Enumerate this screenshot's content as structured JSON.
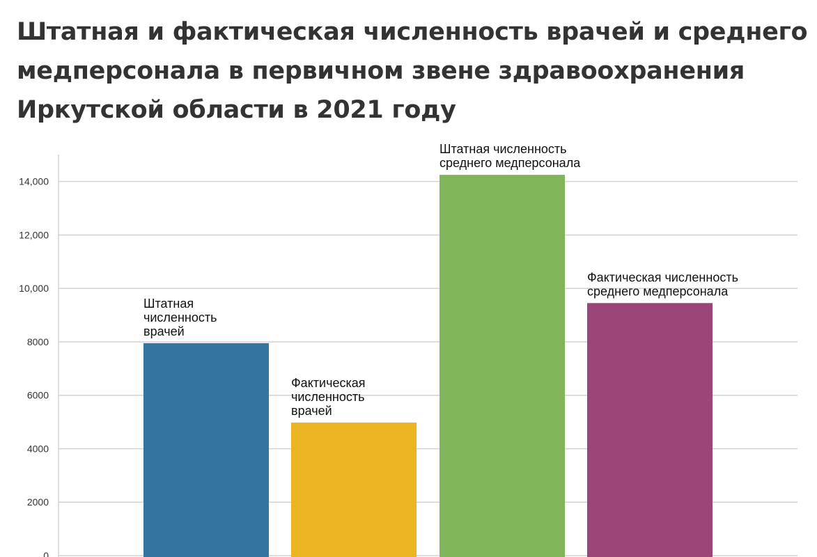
{
  "chart_data": {
    "type": "bar",
    "title_lines": [
      "Штатная и фактическая численность врачей и среднего",
      "медперсонала в первичном звене здравоохранения",
      "Иркутской области в 2021 году"
    ],
    "categories": [
      "Штатная численность врачей",
      "Фактическая численность врачей",
      "Штатная численность среднего медперсонала",
      "Фактическая численность среднего медперсонала"
    ],
    "bar_label_lines": [
      [
        "Штатная",
        "численность",
        "врачей"
      ],
      [
        "Фактическая",
        "численность",
        "врачей"
      ],
      [
        "Штатная численность",
        "среднего медперсонала"
      ],
      [
        "Фактическая численность",
        "среднего медперсонала"
      ]
    ],
    "values": [
      7950,
      4980,
      14250,
      9450
    ],
    "colors": [
      "#3375a0",
      "#edb422",
      "#80b55a",
      "#9b4578"
    ],
    "y_ticks": [
      0,
      2000,
      4000,
      6000,
      8000,
      10000,
      12000,
      14000
    ],
    "y_tick_labels": [
      "0",
      "2000",
      "4000",
      "6000",
      "8000",
      "10,000",
      "12,000",
      "14,000"
    ],
    "ylim": [
      0,
      14500
    ],
    "grid": true,
    "xlabel": "",
    "ylabel": ""
  }
}
